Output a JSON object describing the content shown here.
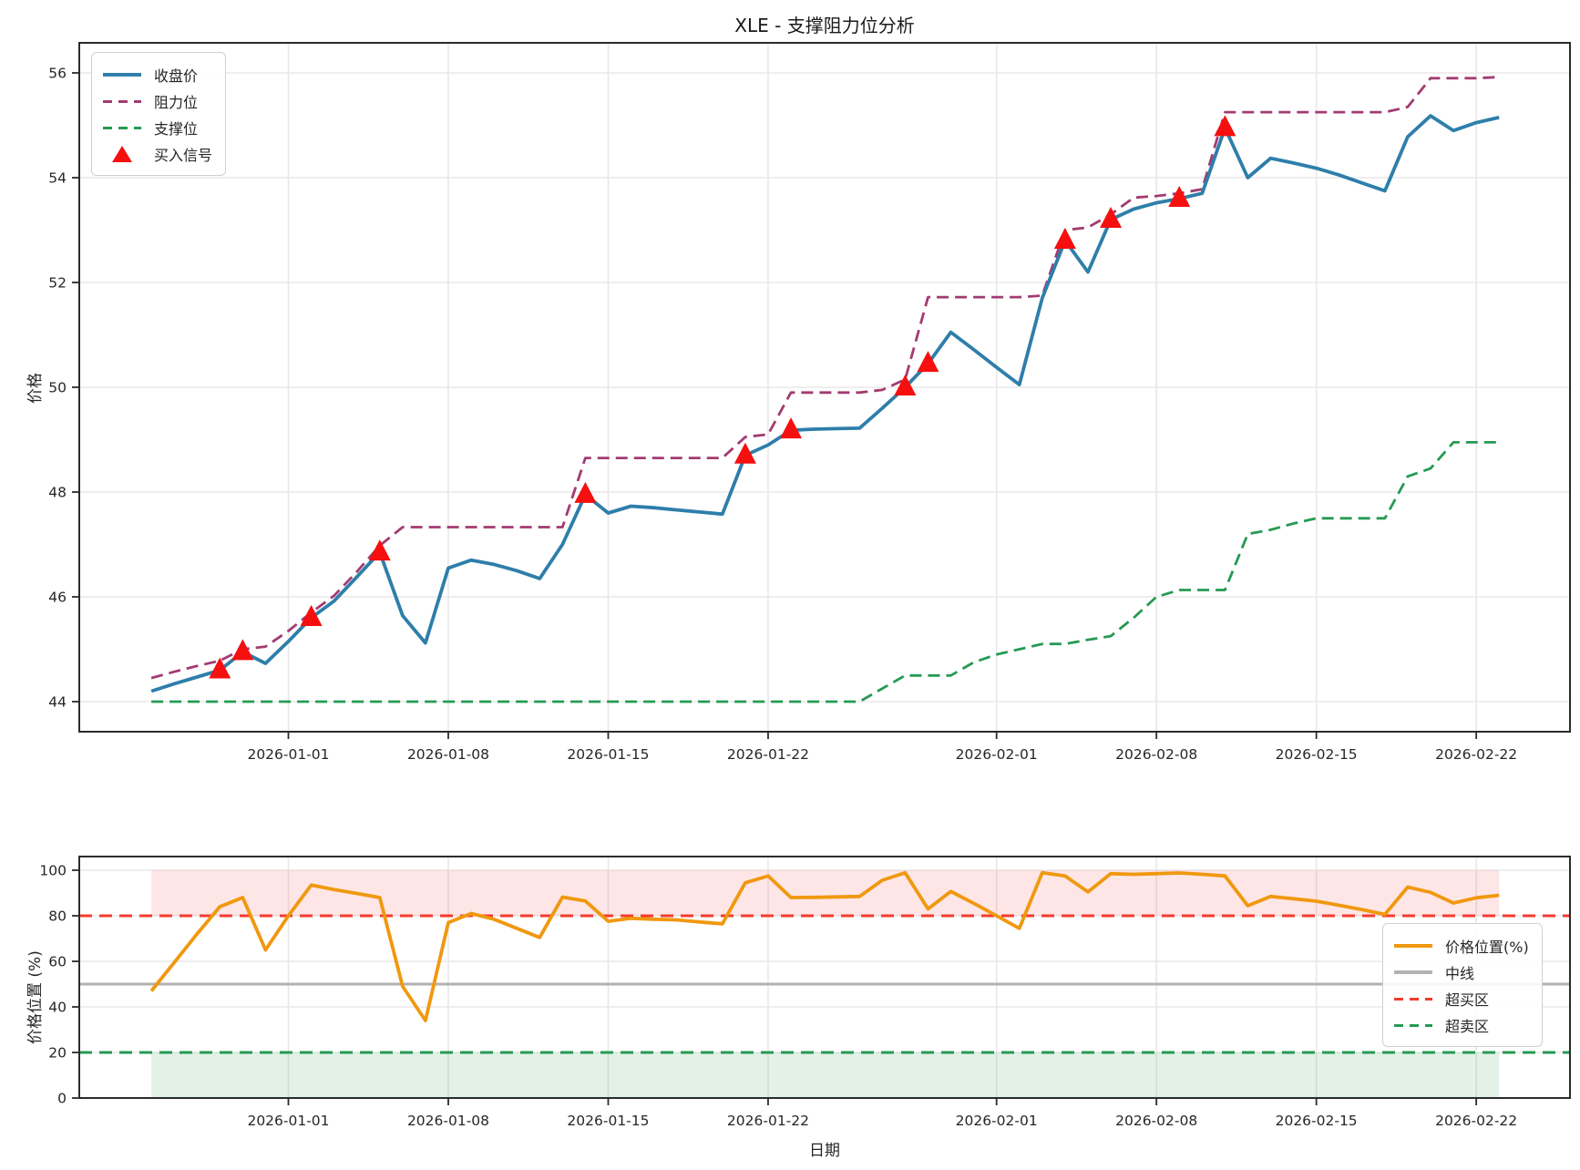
{
  "figure": {
    "title": "XLE - 支撑阻力位分析"
  },
  "colors": {
    "close": "#2e7eaa",
    "resistance": "#a23b72",
    "support": "#259a53",
    "signal": "#f50f0f",
    "position": "#f0980f",
    "midline": "#b2b2b2",
    "overbought": "#f43b2e",
    "oversold": "#259a53",
    "overbought_band": "rgba(250,80,80,0.14)",
    "oversold_band": "rgba(60,170,90,0.15)",
    "grid": "#e8e8e8",
    "spine": "#2b2b2b",
    "text": "#262626"
  },
  "axes": {
    "price": {
      "ylabel": "价格",
      "y_ticks": [
        44,
        46,
        48,
        50,
        52,
        54,
        56
      ]
    },
    "position": {
      "ylabel": "价格位置 (%)",
      "xlabel": "日期",
      "y_ticks": [
        0,
        20,
        40,
        60,
        80,
        100
      ]
    }
  },
  "x_tick_labels": [
    "2026-01-01",
    "2026-01-08",
    "2026-01-15",
    "2026-01-22",
    "2026-02-01",
    "2026-02-08",
    "2026-02-15",
    "2026-02-22"
  ],
  "legends": {
    "price": [
      {
        "label": "收盘价",
        "swatch": "solid",
        "color": "#2e7eaa"
      },
      {
        "label": "阻力位",
        "swatch": "dashed",
        "color": "#a23b72"
      },
      {
        "label": "支撑位",
        "swatch": "dashed",
        "color": "#259a53"
      },
      {
        "label": "买入信号",
        "swatch": "triangle",
        "color": "#f50f0f"
      }
    ],
    "position": [
      {
        "label": "价格位置(%)",
        "swatch": "solid",
        "color": "#f0980f"
      },
      {
        "label": "中线",
        "swatch": "solid",
        "color": "#b2b2b2"
      },
      {
        "label": "超买区",
        "swatch": "dashed",
        "color": "#f43b2e"
      },
      {
        "label": "超卖区",
        "swatch": "dashed",
        "color": "#259a53"
      }
    ]
  },
  "chart_data": [
    {
      "type": "line",
      "name": "support-resistance-analysis",
      "title": "XLE - 支撑阻力位分析",
      "ylabel": "价格",
      "ylim": [
        43.43,
        56.57
      ],
      "grid": true,
      "legend_position": "upper-left",
      "dates": [
        "2025-12-26",
        "2025-12-27",
        "2025-12-28",
        "2025-12-29",
        "2025-12-30",
        "2025-12-31",
        "2026-01-01",
        "2026-01-02",
        "2026-01-03",
        "2026-01-04",
        "2026-01-05",
        "2026-01-06",
        "2026-01-07",
        "2026-01-08",
        "2026-01-09",
        "2026-01-10",
        "2026-01-11",
        "2026-01-12",
        "2026-01-13",
        "2026-01-14",
        "2026-01-15",
        "2026-01-16",
        "2026-01-17",
        "2026-01-18",
        "2026-01-19",
        "2026-01-20",
        "2026-01-21",
        "2026-01-22",
        "2026-01-23",
        "2026-01-24",
        "2026-01-25",
        "2026-01-26",
        "2026-01-27",
        "2026-01-28",
        "2026-01-29",
        "2026-01-30",
        "2026-01-31",
        "2026-02-01",
        "2026-02-02",
        "2026-02-03",
        "2026-02-04",
        "2026-02-05",
        "2026-02-06",
        "2026-02-07",
        "2026-02-08",
        "2026-02-09",
        "2026-02-10",
        "2026-02-11",
        "2026-02-12",
        "2026-02-13",
        "2026-02-14",
        "2026-02-15",
        "2026-02-16",
        "2026-02-17",
        "2026-02-18",
        "2026-02-19",
        "2026-02-20",
        "2026-02-21",
        "2026-02-22",
        "2026-02-23"
      ],
      "series": [
        {
          "name": "收盘价",
          "style": "solid",
          "color": "#2e7eaa",
          "values": [
            44.2,
            44.34,
            44.47,
            44.6,
            44.95,
            44.73,
            45.15,
            45.6,
            45.92,
            46.38,
            46.85,
            45.64,
            45.12,
            46.55,
            46.7,
            46.62,
            46.5,
            46.35,
            47.0,
            47.95,
            47.6,
            47.73,
            47.7,
            47.66,
            47.62,
            47.58,
            48.7,
            48.9,
            49.18,
            49.2,
            49.21,
            49.22,
            49.6,
            50.0,
            50.45,
            51.05,
            50.72,
            50.38,
            50.05,
            51.7,
            52.8,
            52.2,
            53.2,
            53.4,
            53.52,
            53.6,
            53.7,
            54.95,
            54.0,
            54.37,
            54.28,
            54.18,
            54.05,
            53.9,
            53.75,
            54.78,
            55.18,
            54.9,
            55.05,
            55.15
          ]
        },
        {
          "name": "阻力位",
          "style": "dashed",
          "color": "#a23b72",
          "values": [
            44.45,
            44.57,
            44.68,
            44.78,
            45.0,
            45.05,
            45.35,
            45.7,
            46.02,
            46.48,
            46.98,
            47.33,
            47.33,
            47.33,
            47.33,
            47.33,
            47.33,
            47.33,
            47.33,
            48.65,
            48.65,
            48.65,
            48.65,
            48.65,
            48.65,
            48.65,
            49.05,
            49.1,
            49.9,
            49.9,
            49.9,
            49.9,
            49.95,
            50.15,
            51.72,
            51.72,
            51.72,
            51.72,
            51.72,
            51.75,
            53.0,
            53.05,
            53.3,
            53.62,
            53.65,
            53.7,
            53.78,
            55.25,
            55.25,
            55.25,
            55.25,
            55.25,
            55.25,
            55.25,
            55.25,
            55.35,
            55.9,
            55.9,
            55.9,
            55.92
          ]
        },
        {
          "name": "支撑位",
          "style": "dashed",
          "color": "#259a53",
          "values": [
            44.0,
            44.0,
            44.0,
            44.0,
            44.0,
            44.0,
            44.0,
            44.0,
            44.0,
            44.0,
            44.0,
            44.0,
            44.0,
            44.0,
            44.0,
            44.0,
            44.0,
            44.0,
            44.0,
            44.0,
            44.0,
            44.0,
            44.0,
            44.0,
            44.0,
            44.0,
            44.0,
            44.0,
            44.0,
            44.0,
            44.0,
            44.0,
            44.25,
            44.5,
            44.5,
            44.5,
            44.75,
            44.9,
            45.0,
            45.1,
            45.1,
            45.18,
            45.25,
            45.6,
            46.0,
            46.13,
            46.13,
            46.13,
            47.2,
            47.28,
            47.4,
            47.5,
            47.5,
            47.5,
            47.5,
            48.3,
            48.45,
            48.95,
            48.95,
            48.95
          ]
        }
      ],
      "buy_signals": [
        {
          "date": "2025-12-29",
          "value": 44.6
        },
        {
          "date": "2025-12-30",
          "value": 44.95
        },
        {
          "date": "2026-01-02",
          "value": 45.6
        },
        {
          "date": "2026-01-05",
          "value": 46.85
        },
        {
          "date": "2026-01-14",
          "value": 47.95
        },
        {
          "date": "2026-01-21",
          "value": 48.7
        },
        {
          "date": "2026-01-23",
          "value": 49.18
        },
        {
          "date": "2026-01-28",
          "value": 50.0
        },
        {
          "date": "2026-01-29",
          "value": 50.45
        },
        {
          "date": "2026-02-04",
          "value": 52.8
        },
        {
          "date": "2026-02-06",
          "value": 53.2
        },
        {
          "date": "2026-02-09",
          "value": 53.6
        },
        {
          "date": "2026-02-11",
          "value": 54.95
        }
      ]
    },
    {
      "type": "line",
      "name": "price-position-oscillator",
      "ylabel": "价格位置 (%)",
      "xlabel": "日期",
      "ylim": [
        0,
        106
      ],
      "grid": true,
      "legend_position": "center-right",
      "x": "same dates as chart 0",
      "series": [
        {
          "name": "价格位置(%)",
          "style": "solid",
          "color": "#f0980f",
          "values": [
            47.0,
            59.5,
            72.0,
            84.0,
            88.0,
            65.0,
            80.0,
            93.5,
            91.5,
            89.8,
            88.0,
            49.0,
            34.0,
            77.0,
            81.0,
            78.5,
            74.5,
            70.5,
            88.2,
            86.5,
            77.6,
            78.9,
            78.5,
            78.2,
            77.3,
            76.5,
            94.5,
            97.5,
            88.0,
            88.1,
            88.3,
            88.5,
            95.6,
            98.9,
            83.0,
            90.7,
            85.5,
            80.0,
            74.5,
            98.9,
            97.5,
            90.5,
            98.5,
            98.2,
            98.5,
            98.8,
            98.2,
            97.5,
            84.4,
            88.5,
            87.5,
            86.4,
            84.6,
            82.7,
            80.6,
            92.6,
            90.3,
            85.6,
            87.9,
            89.0
          ]
        }
      ],
      "hlines": [
        {
          "name": "中线",
          "value": 50,
          "style": "solid",
          "color": "#b2b2b2"
        },
        {
          "name": "超买区",
          "value": 80,
          "style": "dashed",
          "color": "#f43b2e"
        },
        {
          "name": "超卖区",
          "value": 20,
          "style": "dashed",
          "color": "#259a53"
        }
      ],
      "bands": [
        {
          "name": "overbought-band",
          "from": 80,
          "to": 100
        },
        {
          "name": "oversold-band",
          "from": 0,
          "to": 20
        }
      ]
    }
  ]
}
